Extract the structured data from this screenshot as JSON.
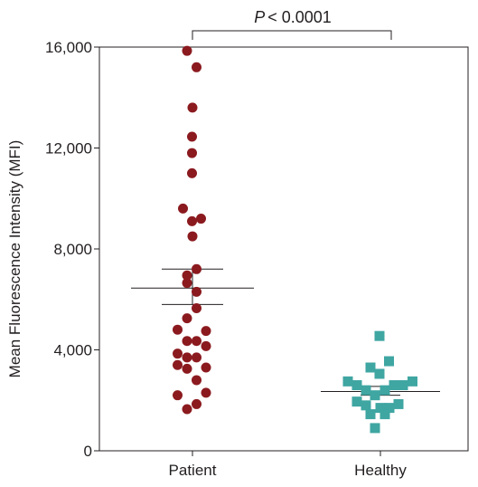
{
  "chart_data": {
    "type": "scatter",
    "title": "",
    "xlabel": "",
    "ylabel": "Mean Fluorescence Intensity (MFI)",
    "categories": [
      "Patient",
      "Healthy"
    ],
    "ylim": [
      0,
      16000
    ],
    "y_ticks": [
      0,
      4000,
      8000,
      12000,
      16000
    ],
    "y_tick_labels": [
      "0",
      "4,000",
      "8,000",
      "12,000",
      "16,000"
    ],
    "grid": false,
    "legend": "none",
    "annotation": {
      "p_symbol": "P",
      "p_text": "< 0.0001"
    },
    "colors": {
      "patient": "#8b1a1f",
      "healthy": "#3fa6a2",
      "axis": "#231f20"
    },
    "series": [
      {
        "category": "Patient",
        "marker": "circle",
        "mean": 6450,
        "sem_low": 5800,
        "sem_high": 7200,
        "points": [
          {
            "dx": -0.12,
            "y": 15850
          },
          {
            "dx": 0.09,
            "y": 15200
          },
          {
            "dx": 0.0,
            "y": 13600
          },
          {
            "dx": -0.01,
            "y": 12450
          },
          {
            "dx": -0.01,
            "y": 11800
          },
          {
            "dx": -0.01,
            "y": 11000
          },
          {
            "dx": -0.21,
            "y": 9600
          },
          {
            "dx": -0.01,
            "y": 9100
          },
          {
            "dx": 0.19,
            "y": 9200
          },
          {
            "dx": 0.0,
            "y": 8500
          },
          {
            "dx": -0.12,
            "y": 6950
          },
          {
            "dx": 0.09,
            "y": 7200
          },
          {
            "dx": -0.12,
            "y": 6650
          },
          {
            "dx": 0.09,
            "y": 6300
          },
          {
            "dx": 0.09,
            "y": 5650
          },
          {
            "dx": -0.12,
            "y": 5250
          },
          {
            "dx": -0.33,
            "y": 4800
          },
          {
            "dx": 0.3,
            "y": 4750
          },
          {
            "dx": -0.12,
            "y": 4350
          },
          {
            "dx": 0.09,
            "y": 4350
          },
          {
            "dx": 0.3,
            "y": 4150
          },
          {
            "dx": -0.33,
            "y": 3850
          },
          {
            "dx": -0.12,
            "y": 3700
          },
          {
            "dx": 0.09,
            "y": 3700
          },
          {
            "dx": -0.33,
            "y": 3400
          },
          {
            "dx": -0.12,
            "y": 3250
          },
          {
            "dx": 0.3,
            "y": 3300
          },
          {
            "dx": 0.09,
            "y": 2800
          },
          {
            "dx": -0.33,
            "y": 2200
          },
          {
            "dx": 0.3,
            "y": 2300
          },
          {
            "dx": 0.09,
            "y": 1850
          },
          {
            "dx": -0.12,
            "y": 1650
          }
        ]
      },
      {
        "category": "Healthy",
        "marker": "square",
        "mean": 2350,
        "sem_low": 2200,
        "sem_high": 2550,
        "points": [
          {
            "dx": -0.02,
            "y": 4550
          },
          {
            "dx": 0.19,
            "y": 3550
          },
          {
            "dx": -0.22,
            "y": 3300
          },
          {
            "dx": -0.02,
            "y": 3050
          },
          {
            "dx": -0.72,
            "y": 2750
          },
          {
            "dx": 0.71,
            "y": 2750
          },
          {
            "dx": -0.52,
            "y": 2600
          },
          {
            "dx": 0.3,
            "y": 2600
          },
          {
            "dx": 0.5,
            "y": 2600
          },
          {
            "dx": -0.32,
            "y": 2400
          },
          {
            "dx": 0.1,
            "y": 2400
          },
          {
            "dx": -0.12,
            "y": 2200
          },
          {
            "dx": -0.52,
            "y": 1950
          },
          {
            "dx": 0.4,
            "y": 1850
          },
          {
            "dx": -0.32,
            "y": 1800
          },
          {
            "dx": 0.0,
            "y": 1700
          },
          {
            "dx": 0.2,
            "y": 1700
          },
          {
            "dx": 0.1,
            "y": 1450
          },
          {
            "dx": -0.22,
            "y": 1450
          },
          {
            "dx": -0.12,
            "y": 900
          }
        ]
      }
    ]
  }
}
